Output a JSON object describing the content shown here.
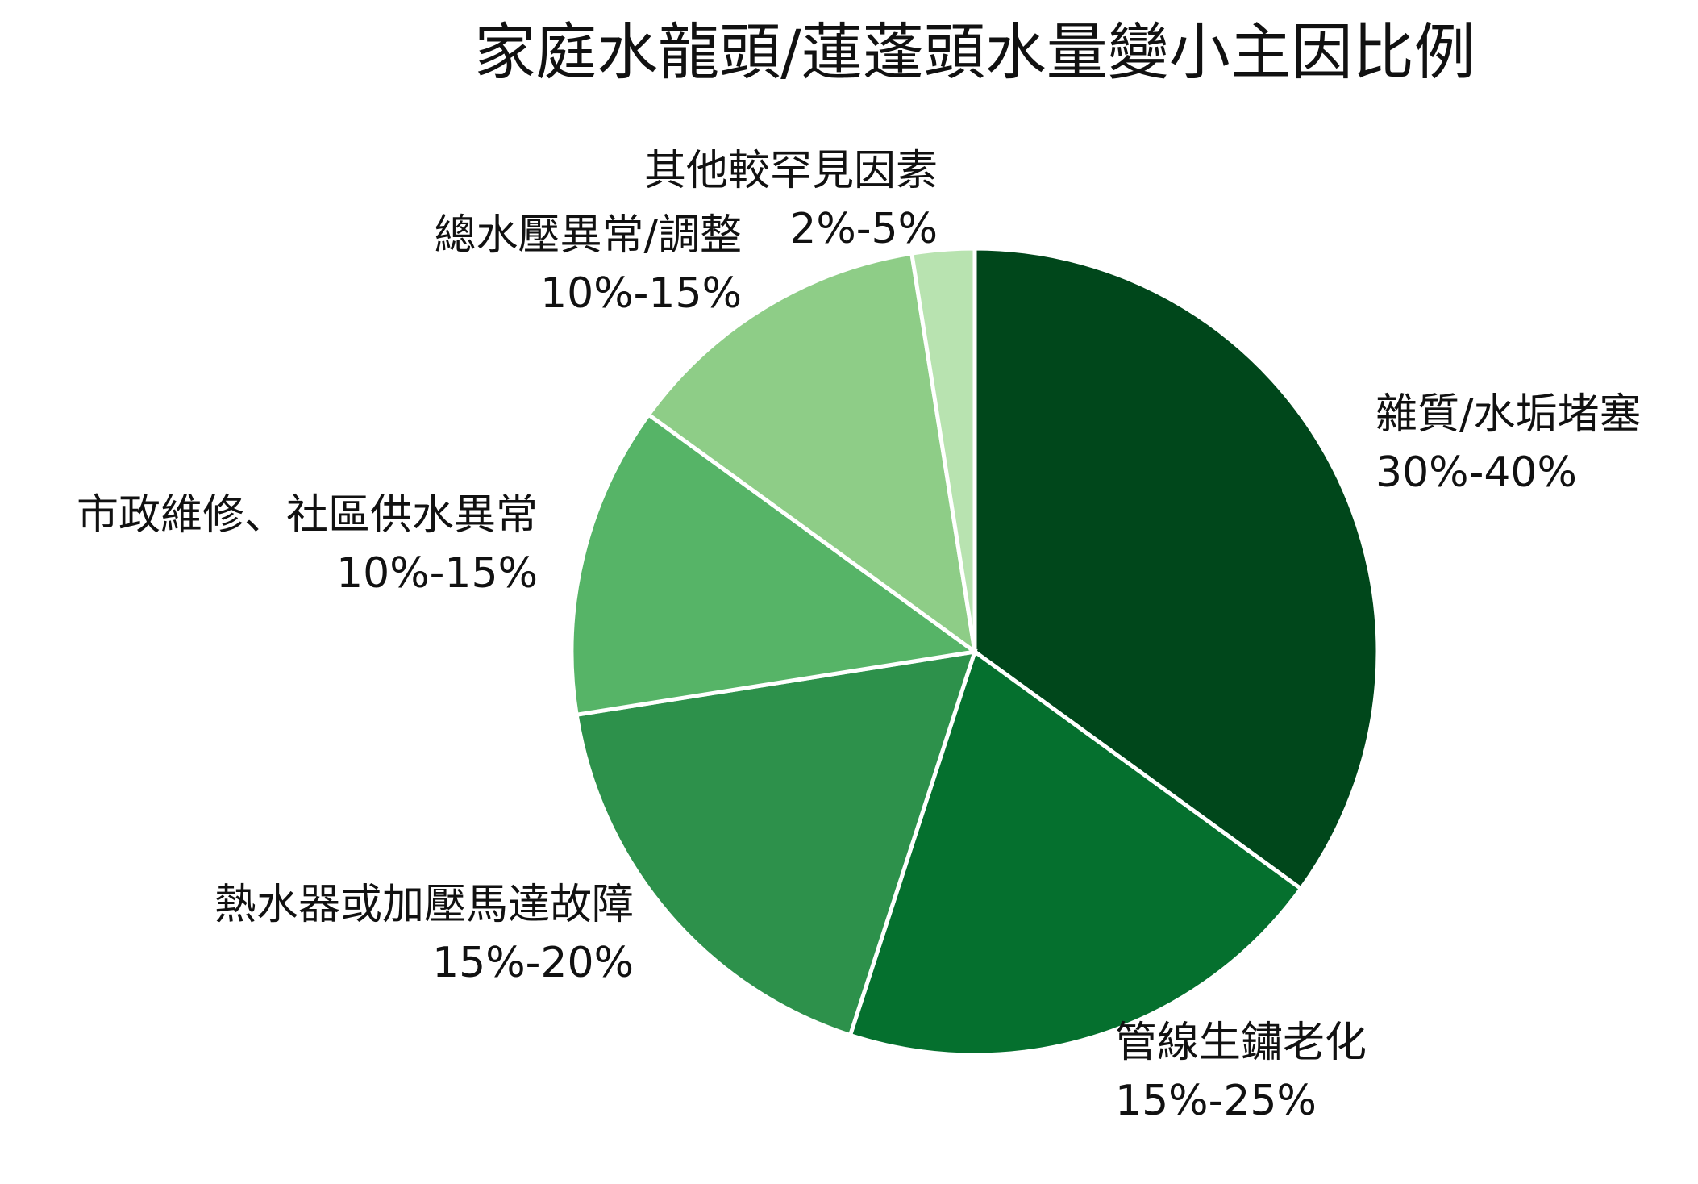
{
  "chart_data": {
    "type": "pie",
    "title": "家庭水龍頭/蓮蓬頭水量變小主因比例",
    "categories": [
      "雜質/水垢堵塞",
      "管線生鏽老化",
      "熱水器或加壓馬達故障",
      "市政維修、社區供水異常",
      "總水壓異常/調整",
      "其他較罕見因素"
    ],
    "values": [
      35,
      20,
      17.5,
      12.5,
      12.5,
      2.5
    ],
    "value_labels": [
      "30%-40%",
      "15%-25%",
      "15%-20%",
      "10%-15%",
      "10%-15%",
      "2%-5%"
    ],
    "colors": [
      "#00471b",
      "#05702e",
      "#2d914b",
      "#56b467",
      "#8ecd87",
      "#b8e3b0"
    ]
  }
}
